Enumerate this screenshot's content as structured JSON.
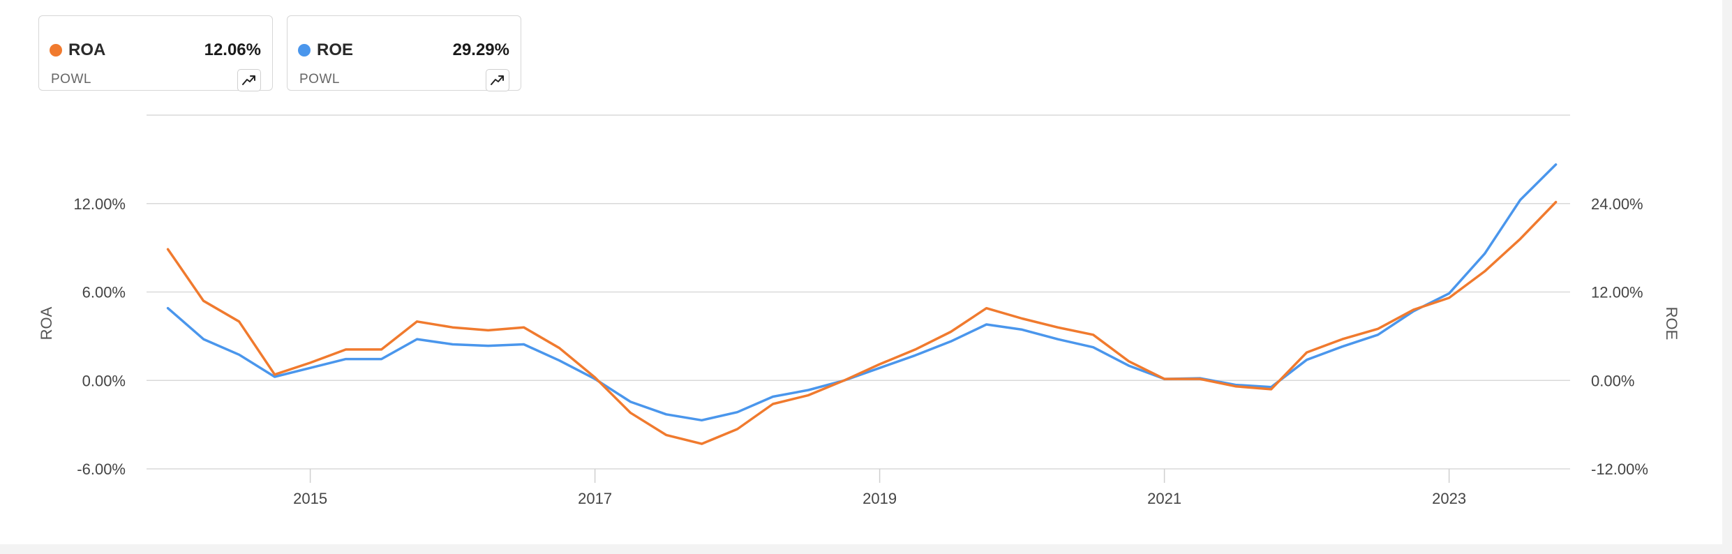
{
  "legend": [
    {
      "name": "ROA",
      "ticker": "POWL",
      "value": "12.06%",
      "color": "#f07a2e",
      "icon": "trend-up-icon"
    },
    {
      "name": "ROE",
      "ticker": "POWL",
      "value": "29.29%",
      "color": "#4a96ec",
      "icon": "trend-up-icon"
    }
  ],
  "chart_data": {
    "type": "line",
    "x_ticks": [
      {
        "label": "2015",
        "value": 2015
      },
      {
        "label": "2017",
        "value": 2017
      },
      {
        "label": "2019",
        "value": 2019
      },
      {
        "label": "2021",
        "value": 2021
      },
      {
        "label": "2023",
        "value": 2023
      }
    ],
    "x_range": [
      2013.85,
      2023.85
    ],
    "y_left": {
      "title": "ROA",
      "range": [
        -6,
        18
      ],
      "ticks": [
        {
          "label": "-6.00%",
          "value": -6
        },
        {
          "label": "0.00%",
          "value": 0
        },
        {
          "label": "6.00%",
          "value": 6
        },
        {
          "label": "12.00%",
          "value": 12
        }
      ]
    },
    "y_right": {
      "title": "ROE",
      "range": [
        -12,
        36
      ],
      "ticks": [
        {
          "label": "-12.00%",
          "value": -12
        },
        {
          "label": "0.00%",
          "value": 0
        },
        {
          "label": "12.00%",
          "value": 12
        },
        {
          "label": "24.00%",
          "value": 24
        }
      ]
    },
    "x": [
      2014.0,
      2014.25,
      2014.5,
      2014.75,
      2015.0,
      2015.25,
      2015.5,
      2015.75,
      2016.0,
      2016.25,
      2016.5,
      2016.75,
      2017.0,
      2017.25,
      2017.5,
      2017.75,
      2018.0,
      2018.25,
      2018.5,
      2018.75,
      2019.0,
      2019.25,
      2019.5,
      2019.75,
      2020.0,
      2020.25,
      2020.5,
      2020.75,
      2021.0,
      2021.25,
      2021.5,
      2021.75,
      2022.0,
      2022.25,
      2022.5,
      2022.75,
      2023.0,
      2023.25,
      2023.5,
      2023.75
    ],
    "series": [
      {
        "name": "ROA",
        "axis": "left",
        "color": "#f07a2e",
        "values": [
          8.9,
          5.4,
          4.0,
          0.4,
          1.2,
          2.1,
          2.1,
          4.0,
          3.6,
          3.4,
          3.6,
          2.2,
          0.2,
          -2.2,
          -3.7,
          -4.3,
          -3.3,
          -1.6,
          -1.0,
          0.0,
          1.1,
          2.1,
          3.3,
          4.9,
          4.2,
          3.6,
          3.1,
          1.3,
          0.1,
          0.1,
          -0.4,
          -0.6,
          1.9,
          2.8,
          3.5,
          4.8,
          5.6,
          7.4,
          9.6,
          12.1
        ]
      },
      {
        "name": "ROE",
        "axis": "right",
        "color": "#4a96ec",
        "values": [
          9.8,
          5.6,
          3.5,
          0.5,
          1.7,
          2.9,
          2.9,
          5.6,
          4.9,
          4.7,
          4.9,
          2.7,
          0.2,
          -2.9,
          -4.6,
          -5.4,
          -4.3,
          -2.2,
          -1.3,
          0.0,
          1.7,
          3.4,
          5.3,
          7.6,
          6.9,
          5.6,
          4.5,
          2.0,
          0.2,
          0.3,
          -0.6,
          -0.9,
          2.8,
          4.6,
          6.2,
          9.4,
          11.8,
          17.2,
          24.5,
          29.3
        ]
      }
    ],
    "grid": true
  }
}
